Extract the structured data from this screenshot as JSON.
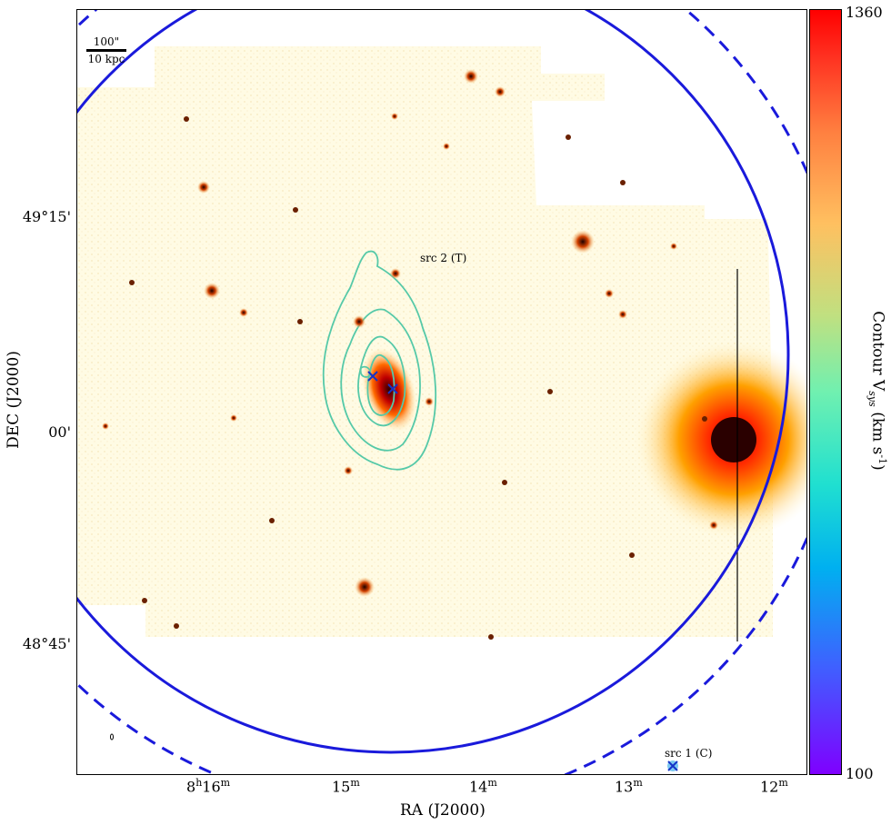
{
  "colorbar": {
    "title_main": "Contour V",
    "title_sub": "sys",
    "title_unit": " (km s",
    "title_exp": "-1",
    "title_end": ")",
    "max_label": "1360",
    "min_label": "100"
  },
  "axes": {
    "xlabel": "RA (J2000)",
    "ylabel": "DEC (J2000)",
    "x_ticks": [
      {
        "main": "8",
        "sup1": "h",
        "main2": "16",
        "sup2": "m"
      },
      {
        "main": "15",
        "sup1": "m"
      },
      {
        "main": "14",
        "sup1": "m"
      },
      {
        "main": "13",
        "sup1": "m"
      },
      {
        "main": "12",
        "sup1": "m"
      }
    ],
    "y_ticks": [
      "49°15'",
      "00'",
      "48°45'"
    ]
  },
  "scalebar": {
    "top": "100\"",
    "bottom": "10 kpc"
  },
  "sources": {
    "src1": "src 1 (C)",
    "src2": "src 2 (T)"
  },
  "colors": {
    "circle": "#1a1adb",
    "contour": "#56c9a8",
    "marker": "#1533c8"
  }
}
